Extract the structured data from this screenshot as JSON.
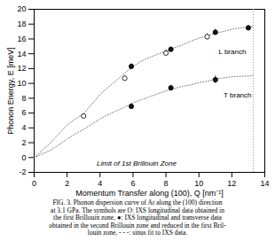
{
  "chart_data": {
    "type": "scatter",
    "xlabel": "Momentum Transfer along (100), Q [nm⁻¹]",
    "ylabel": "Phonon Energy, E [meV]",
    "xlim": [
      0,
      14
    ],
    "ylim": [
      -2,
      20
    ],
    "xticks": [
      0,
      2,
      4,
      6,
      8,
      10,
      12,
      14
    ],
    "yticks": [
      -2,
      0,
      2,
      4,
      6,
      8,
      10,
      12,
      14,
      16,
      18,
      20
    ],
    "series": [
      {
        "type": "line",
        "line_style": "dotted",
        "color": "#777777",
        "x": [
          0,
          0.5,
          1,
          1.5,
          2,
          2.5,
          3,
          3.5,
          4,
          4.5,
          5,
          5.5,
          6,
          6.5,
          7,
          7.5,
          8,
          8.5,
          9,
          9.5,
          10,
          10.5,
          11,
          11.5,
          12,
          12.5,
          13,
          13.3
        ],
        "values": [
          0,
          1.0,
          2.0,
          3.2,
          4.4,
          5.2,
          5.9,
          7.2,
          8.5,
          9.5,
          10.4,
          11.4,
          12.3,
          13.0,
          13.5,
          13.95,
          14.3,
          14.8,
          15.2,
          15.7,
          16.1,
          16.4,
          16.8,
          17.0,
          17.3,
          17.5,
          17.6,
          17.7
        ]
      },
      {
        "type": "line",
        "line_style": "dotted",
        "color": "#777777",
        "x": [
          0,
          0.5,
          1,
          1.5,
          2,
          2.5,
          3,
          3.5,
          4,
          4.5,
          5,
          5.5,
          6,
          6.5,
          7,
          7.5,
          8,
          8.5,
          9,
          9.5,
          10,
          10.5,
          11,
          11.5,
          12,
          12.5,
          13,
          13.3
        ],
        "values": [
          0,
          0.5,
          1.0,
          1.7,
          2.5,
          3.2,
          3.8,
          4.5,
          5.2,
          5.8,
          6.3,
          6.8,
          7.4,
          7.8,
          8.2,
          8.6,
          9.0,
          9.3,
          9.6,
          9.8,
          10.1,
          10.3,
          10.6,
          10.75,
          10.9,
          10.95,
          11.0,
          11.05
        ]
      },
      {
        "type": "scatter",
        "marker": "open_circle",
        "x": [
          3.0,
          5.5,
          8.0,
          10.5
        ],
        "values": [
          5.6,
          10.7,
          14.1,
          16.3
        ],
        "errors": [
          0.3,
          0.35,
          0.4,
          0.4
        ]
      },
      {
        "type": "scatter",
        "marker": "circle",
        "color": "#111111",
        "x": [
          5.9,
          8.3,
          11.0,
          13.0
        ],
        "values": [
          12.3,
          14.6,
          16.9,
          17.5
        ],
        "errors": [
          0.35,
          0.3,
          0.4,
          0.3
        ]
      },
      {
        "type": "scatter",
        "marker": "circle",
        "color": "#111111",
        "x": [
          5.9,
          8.3,
          11.0
        ],
        "values": [
          6.9,
          9.4,
          10.5
        ],
        "errors": [
          0.35,
          0.35,
          0.5
        ]
      }
    ],
    "vline": {
      "x": 13.3,
      "color": "#999999",
      "line_style": "dotted"
    },
    "annotations": [
      {
        "text": "L branch",
        "x": 11.2,
        "y": 14.3
      },
      {
        "text": "T branch",
        "x": 11.5,
        "y": 8.4
      },
      {
        "text": "Limit of 1st Brillouin Zone",
        "x": 3.8,
        "y": -0.8,
        "font_style": "italic"
      }
    ],
    "caption": [
      "FIG. 3. Phonon dispersion curve of Ar along the (100) direction",
      "at 3.1 GPa. The symbols are O: IXS longitudinal data obtained in",
      "the first Brillouin zone, ●: IXS longitudinal and transverse data",
      "obtained in the second Brillouin zone and reduced in the first Bril-",
      "louin zone, - - -: sinus fit to IXS data."
    ]
  }
}
